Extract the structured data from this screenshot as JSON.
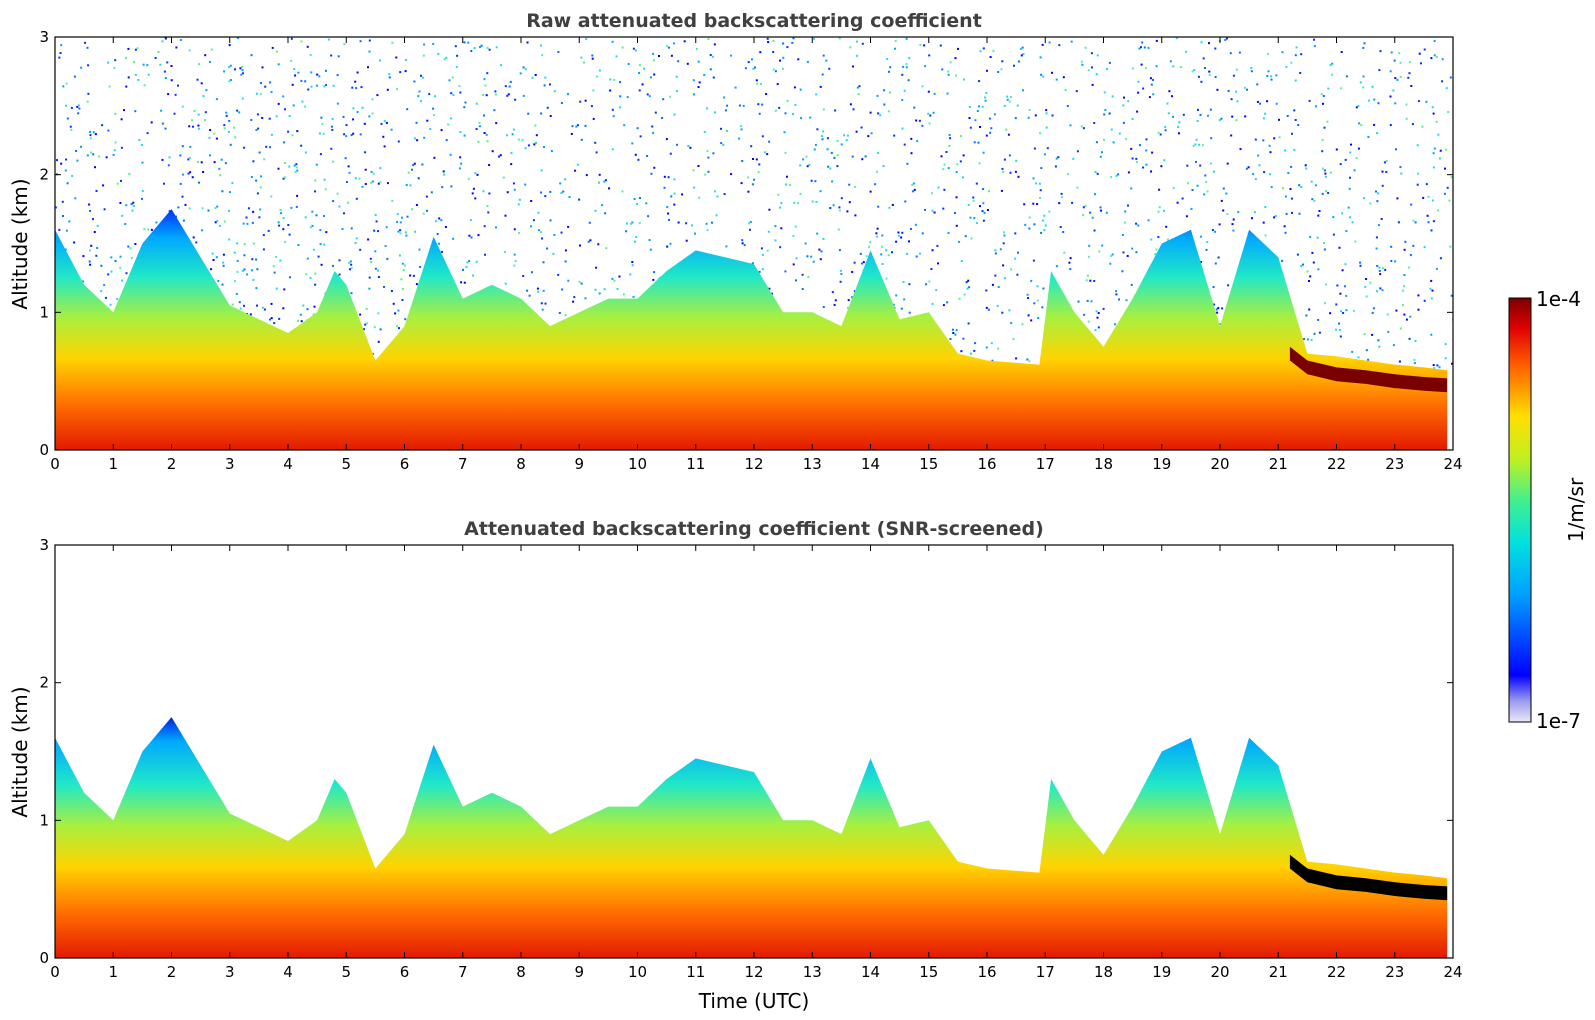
{
  "chart_data": [
    {
      "type": "heatmap",
      "title": "Raw attenuated backscattering coefficient",
      "xlabel": "",
      "ylabel": "Altitude (km)",
      "xlim": [
        0,
        24
      ],
      "ylim": [
        0,
        3
      ],
      "x_ticks": [
        0,
        1,
        2,
        3,
        4,
        5,
        6,
        7,
        8,
        9,
        10,
        11,
        12,
        13,
        14,
        15,
        16,
        17,
        18,
        19,
        20,
        21,
        22,
        23,
        24
      ],
      "y_ticks": [
        0,
        1,
        2,
        3
      ],
      "screened": false,
      "boundary_layer_top_km": [
        [
          0,
          1.6
        ],
        [
          0.5,
          1.2
        ],
        [
          1,
          1.0
        ],
        [
          1.5,
          1.5
        ],
        [
          2,
          1.75
        ],
        [
          2.5,
          1.4
        ],
        [
          3,
          1.05
        ],
        [
          3.5,
          0.95
        ],
        [
          4,
          0.85
        ],
        [
          4.5,
          1.0
        ],
        [
          4.8,
          1.3
        ],
        [
          5,
          1.2
        ],
        [
          5.5,
          0.65
        ],
        [
          6,
          0.9
        ],
        [
          6.5,
          1.55
        ],
        [
          7,
          1.1
        ],
        [
          7.5,
          1.2
        ],
        [
          8,
          1.1
        ],
        [
          8.5,
          0.9
        ],
        [
          9,
          1.0
        ],
        [
          9.5,
          1.1
        ],
        [
          10,
          1.1
        ],
        [
          10.5,
          1.3
        ],
        [
          11,
          1.45
        ],
        [
          11.5,
          1.4
        ],
        [
          12,
          1.35
        ],
        [
          12.5,
          1.0
        ],
        [
          13,
          1.0
        ],
        [
          13.5,
          0.9
        ],
        [
          14,
          1.45
        ],
        [
          14.5,
          0.95
        ],
        [
          15,
          1.0
        ],
        [
          15.5,
          0.7
        ],
        [
          16,
          0.65
        ],
        [
          16.9,
          0.62
        ],
        [
          17.1,
          1.3
        ],
        [
          17.5,
          1.0
        ],
        [
          18,
          0.75
        ],
        [
          18.5,
          1.1
        ],
        [
          19,
          1.5
        ],
        [
          19.5,
          1.6
        ],
        [
          20,
          0.9
        ],
        [
          20.5,
          1.6
        ],
        [
          21,
          1.4
        ],
        [
          21.5,
          0.7
        ],
        [
          22,
          0.68
        ],
        [
          22.5,
          0.65
        ],
        [
          23,
          0.62
        ],
        [
          23.5,
          0.6
        ],
        [
          23.9,
          0.58
        ]
      ],
      "elevated_layer_km": [
        [
          21.2,
          0.7
        ],
        [
          21.5,
          0.6
        ],
        [
          22,
          0.55
        ],
        [
          22.5,
          0.53
        ],
        [
          23,
          0.5
        ],
        [
          23.5,
          0.48
        ],
        [
          23.9,
          0.47
        ]
      ],
      "noise": "high above boundary layer"
    },
    {
      "type": "heatmap",
      "title": "Attenuated backscattering coefficient (SNR-screened)",
      "xlabel": "Time (UTC)",
      "ylabel": "Altitude (km)",
      "xlim": [
        0,
        24
      ],
      "ylim": [
        0,
        3
      ],
      "x_ticks": [
        0,
        1,
        2,
        3,
        4,
        5,
        6,
        7,
        8,
        9,
        10,
        11,
        12,
        13,
        14,
        15,
        16,
        17,
        18,
        19,
        20,
        21,
        22,
        23,
        24
      ],
      "y_ticks": [
        0,
        1,
        2,
        3
      ],
      "screened": true,
      "boundary_layer_top_km": [
        [
          0,
          1.6
        ],
        [
          0.5,
          1.2
        ],
        [
          1,
          1.0
        ],
        [
          1.5,
          1.5
        ],
        [
          2,
          1.75
        ],
        [
          2.5,
          1.4
        ],
        [
          3,
          1.05
        ],
        [
          3.5,
          0.95
        ],
        [
          4,
          0.85
        ],
        [
          4.5,
          1.0
        ],
        [
          4.8,
          1.3
        ],
        [
          5,
          1.2
        ],
        [
          5.5,
          0.65
        ],
        [
          6,
          0.9
        ],
        [
          6.5,
          1.55
        ],
        [
          7,
          1.1
        ],
        [
          7.5,
          1.2
        ],
        [
          8,
          1.1
        ],
        [
          8.5,
          0.9
        ],
        [
          9,
          1.0
        ],
        [
          9.5,
          1.1
        ],
        [
          10,
          1.1
        ],
        [
          10.5,
          1.3
        ],
        [
          11,
          1.45
        ],
        [
          11.5,
          1.4
        ],
        [
          12,
          1.35
        ],
        [
          12.5,
          1.0
        ],
        [
          13,
          1.0
        ],
        [
          13.5,
          0.9
        ],
        [
          14,
          1.45
        ],
        [
          14.5,
          0.95
        ],
        [
          15,
          1.0
        ],
        [
          15.5,
          0.7
        ],
        [
          16,
          0.65
        ],
        [
          16.9,
          0.62
        ],
        [
          17.1,
          1.3
        ],
        [
          17.5,
          1.0
        ],
        [
          18,
          0.75
        ],
        [
          18.5,
          1.1
        ],
        [
          19,
          1.5
        ],
        [
          19.5,
          1.6
        ],
        [
          20,
          0.9
        ],
        [
          20.5,
          1.6
        ],
        [
          21,
          1.4
        ],
        [
          21.5,
          0.7
        ],
        [
          22,
          0.68
        ],
        [
          22.5,
          0.65
        ],
        [
          23,
          0.62
        ],
        [
          23.5,
          0.6
        ],
        [
          23.9,
          0.58
        ]
      ],
      "elevated_layer_km": [
        [
          21.2,
          0.7
        ],
        [
          21.5,
          0.6
        ],
        [
          22,
          0.55
        ],
        [
          22.5,
          0.53
        ],
        [
          23,
          0.5
        ],
        [
          23.5,
          0.48
        ],
        [
          23.9,
          0.47
        ]
      ],
      "noise": "none"
    }
  ],
  "colorbar": {
    "label": "1/m/sr",
    "max_label": "1e-4",
    "min_label": "1e-7",
    "scale": "log",
    "colormap": "jet"
  }
}
